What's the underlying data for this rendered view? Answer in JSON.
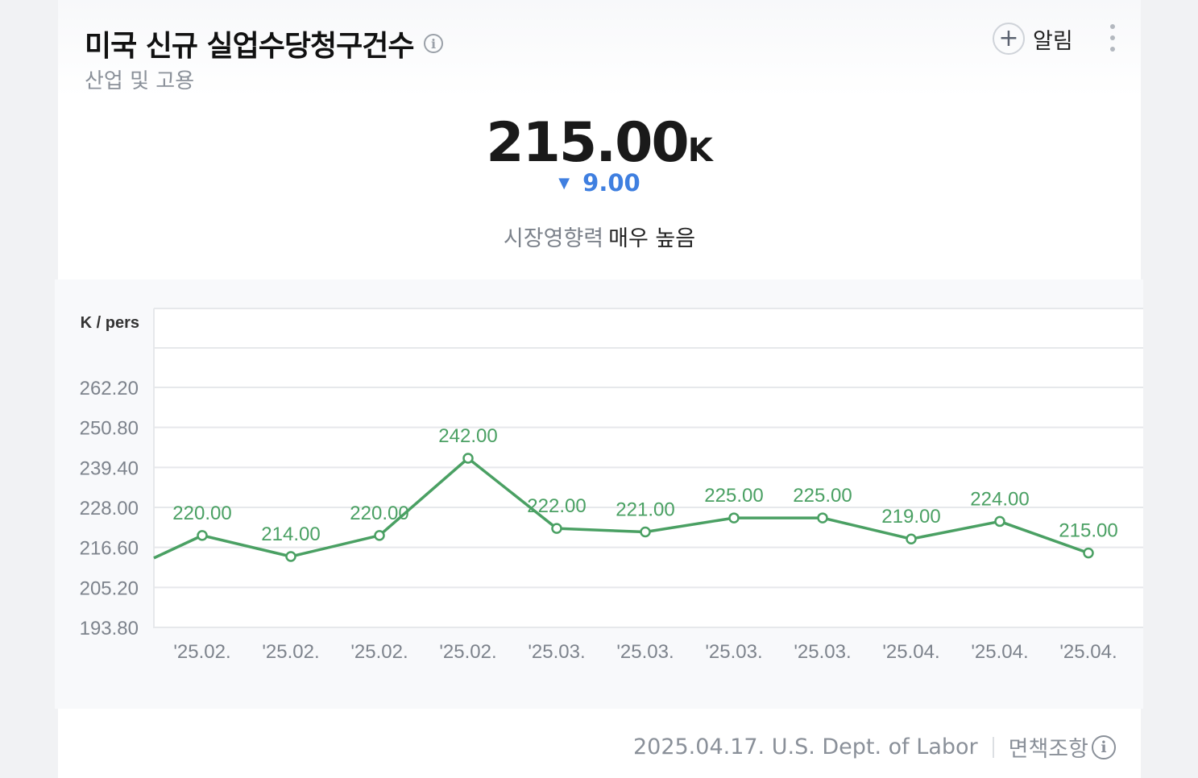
{
  "header": {
    "title": "미국 신규 실업수당청구건수",
    "category": "산업 및 고용",
    "alert_label": "알림"
  },
  "summary": {
    "value": "215.00",
    "unit": "K",
    "change": "9.00",
    "change_direction": "down",
    "impact_label": "시장영향력",
    "impact_value": "매우 높음"
  },
  "footer": {
    "source": "2025.04.17. U.S. Dept. of Labor",
    "disclaimer": "면책조항"
  },
  "colors": {
    "line": "#4aa063",
    "down": "#3f7fe0",
    "grid": "#e6e8eb"
  },
  "chart_data": {
    "type": "line",
    "ylabel": "K / pers",
    "y_ticks": [
      "262.20",
      "250.80",
      "239.40",
      "228.00",
      "216.60",
      "205.20",
      "193.80"
    ],
    "ylim": [
      193.8,
      262.2
    ],
    "categories": [
      "'25.02.",
      "'25.02.",
      "'25.02.",
      "'25.02.",
      "'25.03.",
      "'25.03.",
      "'25.03.",
      "'25.03.",
      "'25.04.",
      "'25.04.",
      "'25.04."
    ],
    "values": [
      220,
      214,
      220,
      242,
      222,
      221,
      225,
      225,
      219,
      224,
      215
    ],
    "labels": [
      "220.00",
      "214.00",
      "220.00",
      "242.00",
      "222.00",
      "221.00",
      "225.00",
      "225.00",
      "219.00",
      "224.00",
      "215.00"
    ],
    "grid": true
  }
}
